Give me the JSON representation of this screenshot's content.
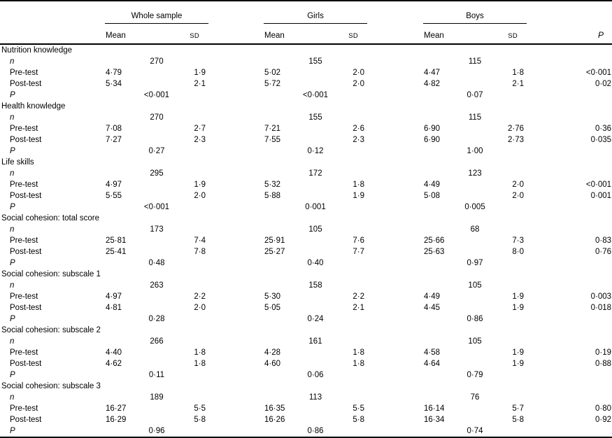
{
  "table": {
    "groups": [
      {
        "label": "Whole sample"
      },
      {
        "label": "Girls"
      },
      {
        "label": "Boys"
      }
    ],
    "col_headers": {
      "mean": "Mean",
      "sd": "SD",
      "p": "P"
    },
    "sections": [
      {
        "title": "Nutrition knowledge",
        "rows": [
          {
            "kind": "n",
            "label": "n",
            "groups": [
              "270",
              "155",
              "115"
            ]
          },
          {
            "kind": "data",
            "label": "Pre-test",
            "cells": [
              "4·79",
              "1·9",
              "5·02",
              "2·0",
              "4·47",
              "1·8"
            ],
            "p": "<0·001"
          },
          {
            "kind": "data",
            "label": "Post-test",
            "cells": [
              "5·34",
              "2·1",
              "5·72",
              "2·0",
              "4·82",
              "2·1"
            ],
            "p": "0·02"
          },
          {
            "kind": "p",
            "label": "P",
            "groups": [
              "<0·001",
              "<0·001",
              "0·07"
            ]
          }
        ]
      },
      {
        "title": "Health knowledge",
        "rows": [
          {
            "kind": "n",
            "label": "n",
            "groups": [
              "270",
              "155",
              "115"
            ]
          },
          {
            "kind": "data",
            "label": "Pre-test",
            "cells": [
              "7·08",
              "2·7",
              "7·21",
              "2·6",
              "6·90",
              "2·76"
            ],
            "p": "0·36"
          },
          {
            "kind": "data",
            "label": "Post-test",
            "cells": [
              "7·27",
              "2·3",
              "7·55",
              "2·3",
              "6·90",
              "2·73"
            ],
            "p": "0·035"
          },
          {
            "kind": "p",
            "label": "P",
            "groups": [
              "0·27",
              "0·12",
              "1·00"
            ]
          }
        ]
      },
      {
        "title": "Life skills",
        "rows": [
          {
            "kind": "n",
            "label": "n",
            "groups": [
              "295",
              "172",
              "123"
            ]
          },
          {
            "kind": "data",
            "label": "Pre-test",
            "cells": [
              "4·97",
              "1·9",
              "5·32",
              "1·8",
              "4·49",
              "2·0"
            ],
            "p": "<0·001"
          },
          {
            "kind": "data",
            "label": "Post-test",
            "cells": [
              "5·55",
              "2·0",
              "5·88",
              "1·9",
              "5·08",
              "2·0"
            ],
            "p": "0·001"
          },
          {
            "kind": "p",
            "label": "P",
            "groups": [
              "<0·001",
              "0·001",
              "0·005"
            ]
          }
        ]
      },
      {
        "title": "Social cohesion: total score",
        "rows": [
          {
            "kind": "n",
            "label": "n",
            "groups": [
              "173",
              "105",
              "68"
            ]
          },
          {
            "kind": "data",
            "label": "Pre-test",
            "cells": [
              "25·81",
              "7·4",
              "25·91",
              "7·6",
              "25·66",
              "7·3"
            ],
            "p": "0·83"
          },
          {
            "kind": "data",
            "label": "Post-test",
            "cells": [
              "25·41",
              "7·8",
              "25·27",
              "7·7",
              "25·63",
              "8·0"
            ],
            "p": "0·76"
          },
          {
            "kind": "p",
            "label": "P",
            "groups": [
              "0·48",
              "0·40",
              "0·97"
            ]
          }
        ]
      },
      {
        "title": "Social cohesion: subscale 1",
        "rows": [
          {
            "kind": "n",
            "label": "n",
            "groups": [
              "263",
              "158",
              "105"
            ]
          },
          {
            "kind": "data",
            "label": "Pre-test",
            "cells": [
              "4·97",
              "2·2",
              "5·30",
              "2·2",
              "4·49",
              "1·9"
            ],
            "p": "0·003"
          },
          {
            "kind": "data",
            "label": "Post-test",
            "cells": [
              "4·81",
              "2·0",
              "5·05",
              "2·1",
              "4·45",
              "1·9"
            ],
            "p": "0·018"
          },
          {
            "kind": "p",
            "label": "P",
            "groups": [
              "0·28",
              "0·24",
              "0·86"
            ]
          }
        ]
      },
      {
        "title": "Social cohesion: subscale 2",
        "rows": [
          {
            "kind": "n",
            "label": "n",
            "groups": [
              "266",
              "161",
              "105"
            ]
          },
          {
            "kind": "data",
            "label": "Pre-test",
            "cells": [
              "4·40",
              "1·8",
              "4·28",
              "1·8",
              "4·58",
              "1·9"
            ],
            "p": "0·19"
          },
          {
            "kind": "data",
            "label": "Post-test",
            "cells": [
              "4·62",
              "1·8",
              "4·60",
              "1·8",
              "4·64",
              "1·9"
            ],
            "p": "0·88"
          },
          {
            "kind": "p",
            "label": "P",
            "groups": [
              "0·11",
              "0·06",
              "0·79"
            ]
          }
        ]
      },
      {
        "title": "Social cohesion: subscale 3",
        "rows": [
          {
            "kind": "n",
            "label": "n",
            "groups": [
              "189",
              "113",
              "76"
            ]
          },
          {
            "kind": "data",
            "label": "Pre-test",
            "cells": [
              "16·27",
              "5·5",
              "16·35",
              "5·5",
              "16·14",
              "5·7"
            ],
            "p": "0·80"
          },
          {
            "kind": "data",
            "label": "Post-test",
            "cells": [
              "16·29",
              "5·8",
              "16·26",
              "5·8",
              "16·34",
              "5·8"
            ],
            "p": "0·92"
          },
          {
            "kind": "p",
            "label": "P",
            "groups": [
              "0·96",
              "0·86",
              "0·74"
            ]
          }
        ]
      }
    ]
  }
}
